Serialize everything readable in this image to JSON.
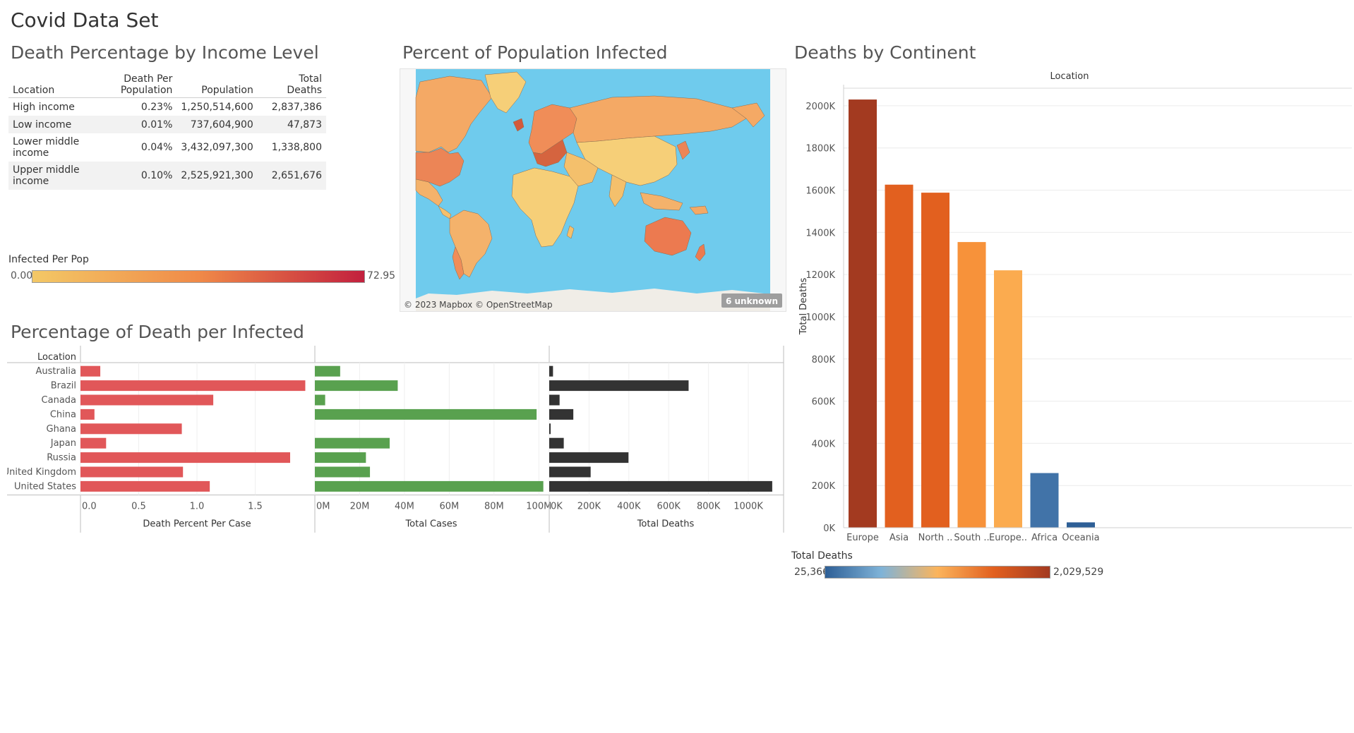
{
  "dashboard_title": "Covid Data Set",
  "income_section": {
    "title": "Death Percentage by Income Level",
    "columns": [
      "Location",
      "Death Per Population",
      "Population",
      "Total Deaths"
    ],
    "column_labels": {
      "location": "Location",
      "death_per_pop_line1": "Death Per",
      "death_per_pop_line2": "Population",
      "population": "Population",
      "total_deaths": "Total Deaths"
    },
    "rows": [
      {
        "location": "High income",
        "death_per_pop": "0.23%",
        "population": "1,250,514,600",
        "total_deaths": "2,837,386"
      },
      {
        "location": "Low income",
        "death_per_pop": "0.01%",
        "population": "737,604,900",
        "total_deaths": "47,873"
      },
      {
        "location": "Lower middle income",
        "death_per_pop": "0.04%",
        "population": "3,432,097,300",
        "total_deaths": "1,338,800"
      },
      {
        "location": "Upper middle income",
        "death_per_pop": "0.10%",
        "population": "2,525,921,300",
        "total_deaths": "2,651,676"
      }
    ]
  },
  "infected_legend": {
    "title": "Infected Per Pop",
    "min": "0.00",
    "max": "72.95",
    "color_low": "#f3c866",
    "color_mid": "#f08a48",
    "color_high": "#c2203e"
  },
  "map_section": {
    "title": "Percent of Population Infected",
    "attribution": "© 2023 Mapbox © OpenStreetMap",
    "unknown_badge": "6 unknown",
    "ocean_color": "#6fcbed"
  },
  "continent_section": {
    "title": "Deaths by Continent",
    "legend_title": "Total Deaths",
    "legend_min": "25,366",
    "legend_max": "2,029,529"
  },
  "death_per_infected_section": {
    "title": "Percentage of Death per Infected"
  },
  "chart_data": [
    {
      "type": "bar",
      "orientation": "vertical",
      "title": "",
      "top_label": "Location",
      "ylabel": "Total Deaths",
      "ylim": [
        0,
        2100000
      ],
      "yticks": [
        "0K",
        "200K",
        "400K",
        "600K",
        "800K",
        "1000K",
        "1200K",
        "1400K",
        "1600K",
        "1800K",
        "2000K"
      ],
      "categories": [
        "Europe",
        "Asia",
        "North ..",
        "South ..",
        "Europe..",
        "Africa",
        "Oceania"
      ],
      "values": [
        2029529,
        1626000,
        1588000,
        1354000,
        1220000,
        259000,
        25366
      ],
      "colors": [
        "#a33a20",
        "#e2601f",
        "#e2601f",
        "#f7923a",
        "#fbab4f",
        "#4173a8",
        "#2e5f96"
      ]
    },
    {
      "type": "bar",
      "orientation": "horizontal",
      "row_header": "Location",
      "categories": [
        "Australia",
        "Brazil",
        "Canada",
        "China",
        "Ghana",
        "Japan",
        "Russia",
        "United Kingdom",
        "United States"
      ],
      "panels": [
        {
          "name": "Death Percent Per Case",
          "xlabel": "Death Percent Per Case",
          "color": "#e15759",
          "xlim": [
            0,
            2.0
          ],
          "ticks": [
            0,
            0.5,
            1.0,
            1.5
          ],
          "tick_labels": [
            "0.0",
            "0.5",
            "1.0",
            "1.5"
          ],
          "values": [
            0.17,
            1.93,
            1.14,
            0.12,
            0.87,
            0.22,
            1.8,
            0.88,
            1.11
          ]
        },
        {
          "name": "Total Cases",
          "xlabel": "Total Cases",
          "color": "#59a14f",
          "xlim": [
            0,
            104000000
          ],
          "ticks": [
            0,
            20000000,
            40000000,
            60000000,
            80000000,
            100000000
          ],
          "tick_labels": [
            "0M",
            "20M",
            "40M",
            "60M",
            "80M",
            "100M"
          ],
          "values": [
            11300000,
            37000000,
            4600000,
            99000000,
            0,
            33400000,
            22800000,
            24600000,
            102000000
          ]
        },
        {
          "name": "Total Deaths",
          "xlabel": "Total Deaths",
          "color": "#333333",
          "xlim": [
            0,
            1170000
          ],
          "ticks": [
            0,
            200000,
            400000,
            600000,
            800000,
            1000000
          ],
          "tick_labels": [
            "0K",
            "200K",
            "400K",
            "600K",
            "800K",
            "1000K"
          ],
          "values": [
            19000,
            700000,
            52000,
            121000,
            1460,
            73000,
            398000,
            208000,
            1120000
          ]
        }
      ]
    }
  ]
}
